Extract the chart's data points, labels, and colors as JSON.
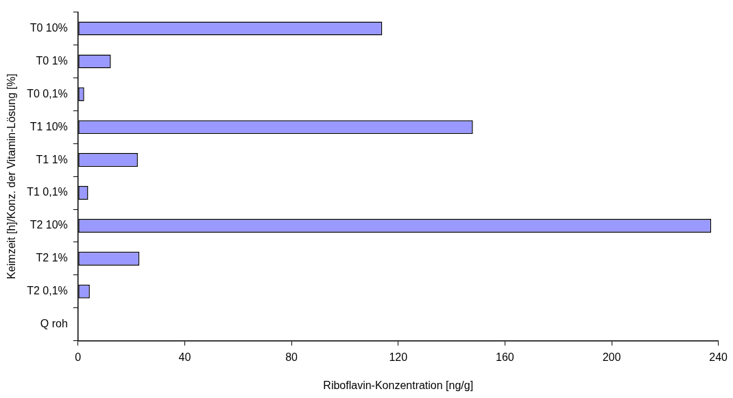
{
  "chart_data": {
    "type": "bar",
    "orientation": "horizontal",
    "xlabel": "Riboflavin-Konzentration [ng/g]",
    "ylabel": "Keimzeit [h]/Konz. der Vitamin-Lösung [%]",
    "categories": [
      "T0 10%",
      "T0 1%",
      "T0 0,1%",
      "T1 10%",
      "T1 1%",
      "T1 0,1%",
      "T2 10%",
      "T2 1%",
      "T2 0,1%",
      "Q roh"
    ],
    "values": [
      114.0,
      12.3,
      2.3,
      148.0,
      22.4,
      3.8,
      237.3,
      23.0,
      4.4,
      0
    ],
    "color": "#9999ff",
    "xlim": [
      0,
      240
    ],
    "xticks": [
      0,
      40,
      80,
      120,
      160,
      200,
      240
    ],
    "grid": false,
    "legend": false
  }
}
